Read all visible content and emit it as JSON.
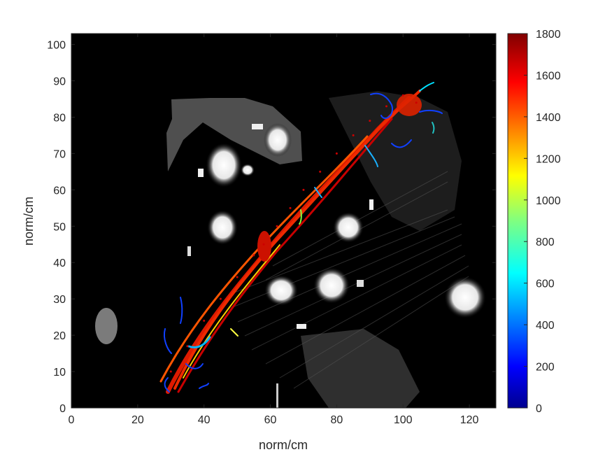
{
  "chart_data": {
    "type": "scatter",
    "title": "",
    "xlabel": "norm/cm",
    "ylabel": "norm/cm",
    "xlim": [
      0,
      128
    ],
    "ylim": [
      0,
      103
    ],
    "xticks": [
      "0",
      "20",
      "40",
      "60",
      "80",
      "100",
      "120"
    ],
    "yticks": [
      "0",
      "10",
      "20",
      "30",
      "40",
      "50",
      "60",
      "70",
      "80",
      "90",
      "100"
    ],
    "grid": false,
    "background": "grayscale image (black)",
    "colormap": "jet",
    "colorbar": {
      "range": [
        0,
        1800
      ],
      "ticks": [
        "0",
        "200",
        "400",
        "600",
        "800",
        "1000",
        "1200",
        "1400",
        "1600",
        "1800"
      ]
    },
    "series": [
      {
        "description_values": "streamline fibers along diagonal",
        "x": [
          30,
          35,
          40,
          45,
          50,
          55,
          58,
          62,
          66,
          70,
          75,
          80,
          85,
          90,
          95,
          100,
          104
        ],
        "y": [
          10,
          17,
          24,
          30,
          36,
          42,
          45,
          50,
          55,
          60,
          65,
          70,
          75,
          79,
          83,
          86,
          84
        ]
      }
    ],
    "colors": {
      "background": "#000000",
      "high": "#cc0000",
      "low": "#0000cc"
    }
  }
}
